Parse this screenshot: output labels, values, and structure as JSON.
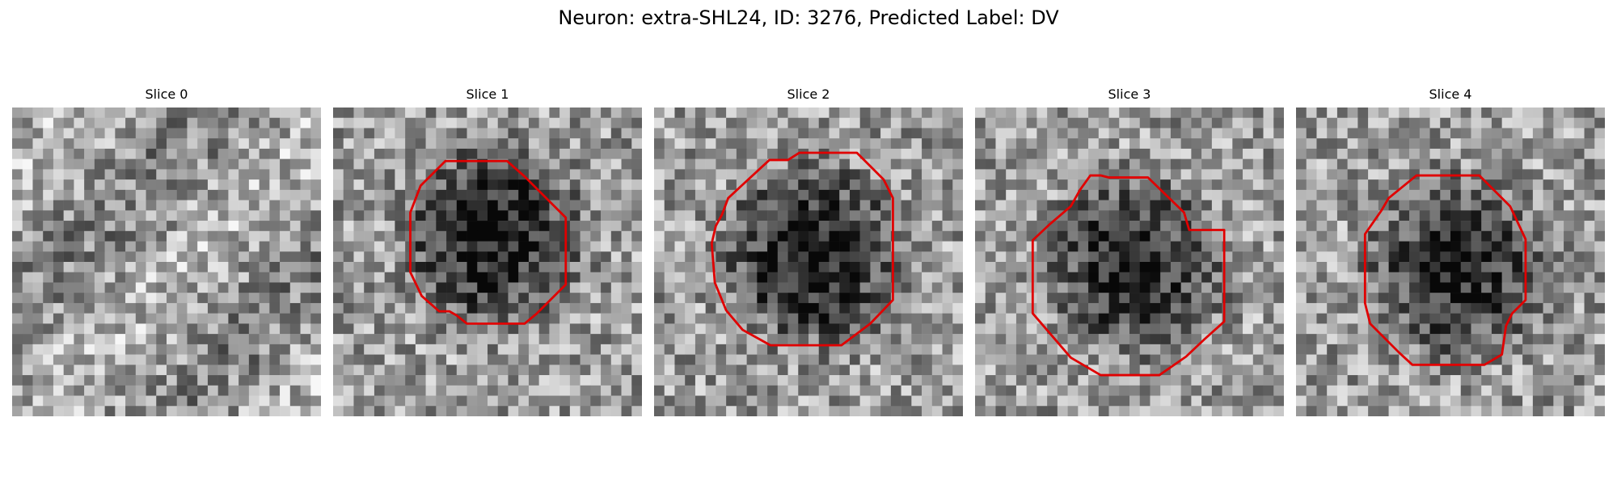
{
  "figure": {
    "title": "Neuron: extra-SHL24, ID: 3276, Predicted Label: DV",
    "contour_color": "#e00000",
    "slices": [
      {
        "title": "Slice 0",
        "seed": 11,
        "dark_center": null,
        "dark_strength": 0,
        "contour": null
      },
      {
        "title": "Slice 1",
        "seed": 23,
        "dark_center": [
          15,
          12
        ],
        "dark_strength": 0.55,
        "contour": "oct1"
      },
      {
        "title": "Slice 2",
        "seed": 37,
        "dark_center": [
          15,
          14
        ],
        "dark_strength": 0.55,
        "contour": "oct2"
      },
      {
        "title": "Slice 3",
        "seed": 41,
        "dark_center": [
          15,
          15
        ],
        "dark_strength": 0.5,
        "contour": "oct3"
      },
      {
        "title": "Slice 4",
        "seed": 53,
        "dark_center": [
          15,
          15
        ],
        "dark_strength": 0.5,
        "contour": "oct4"
      }
    ]
  }
}
